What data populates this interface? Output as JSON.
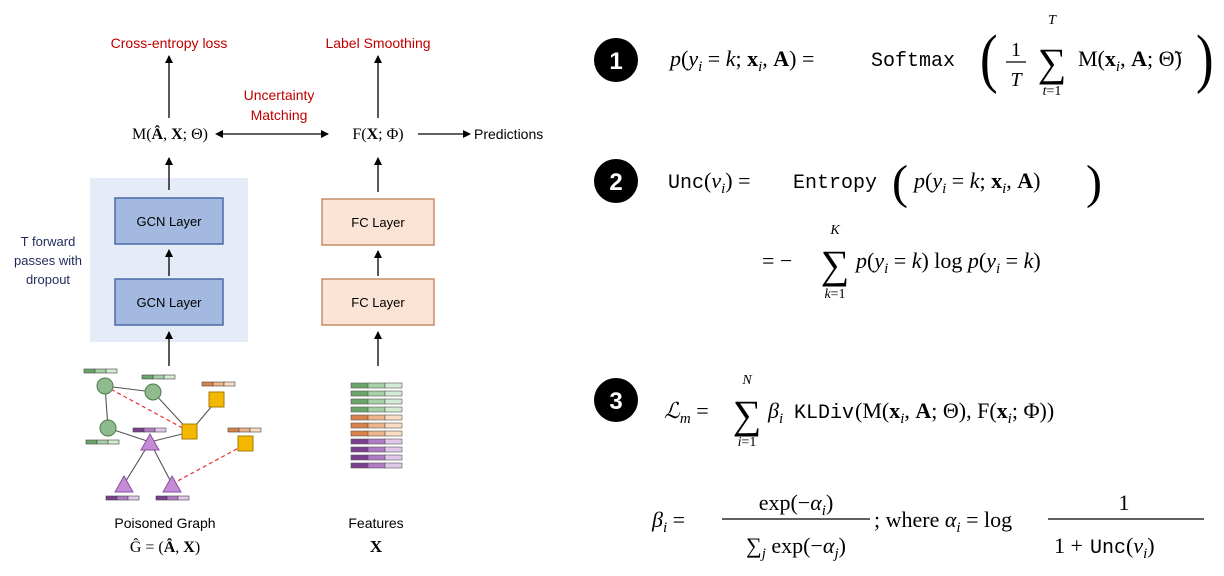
{
  "colors": {
    "red_label": "#c00000",
    "navy_label": "#1f2a5c",
    "gcn_fill": "#a4b9e0",
    "gcn_stroke": "#4a6aa8",
    "fc_fill": "#fbe4d5",
    "fc_stroke": "#c88c6a",
    "dropout_bg": "#e6ecf7",
    "node_green": "#8fbc8f",
    "node_square": "#f5b800",
    "node_triangle": "#c58bd6",
    "edge_dashed": "#e53030"
  },
  "left": {
    "loss_label": "Cross-entropy loss",
    "smoothing_label": "Label Smoothing",
    "matching_line1": "Uncertainty",
    "matching_line2": "Matching",
    "predictions_label": "Predictions",
    "gcn_layers": [
      "GCN Layer",
      "GCN Layer"
    ],
    "fc_layers": [
      "FC Layer",
      "FC Layer"
    ],
    "dropout_note": [
      "T forward",
      "passes with",
      "dropout"
    ],
    "graph_caption": "Poisoned Graph",
    "features_caption": "Features"
  },
  "equations": {
    "badges": [
      "1",
      "2",
      "3"
    ]
  }
}
